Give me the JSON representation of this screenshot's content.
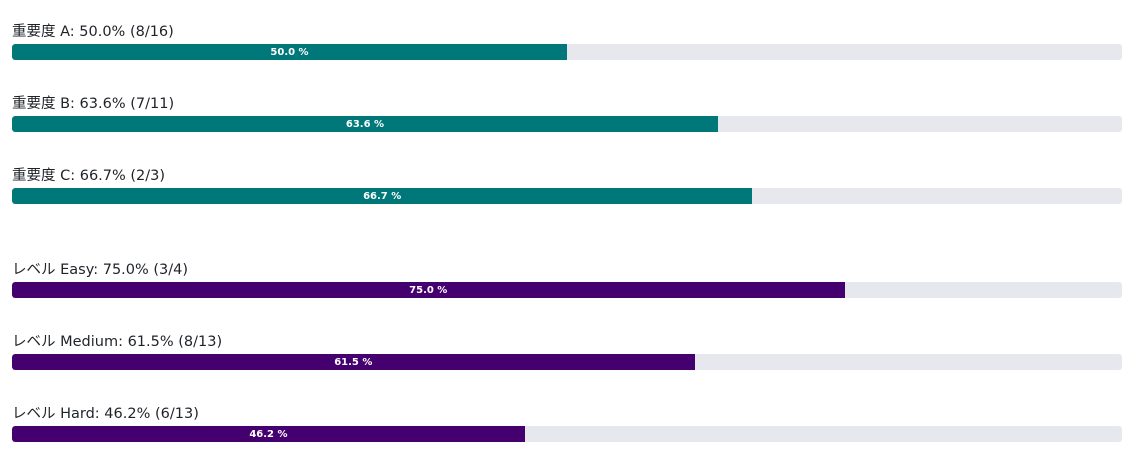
{
  "groups": [
    {
      "color": "#00787a",
      "items": [
        {
          "label": "重要度 A: 50.0% (8/16)",
          "percent": 50.0,
          "percent_label": "50.0 %"
        },
        {
          "label": "重要度 B: 63.6% (7/11)",
          "percent": 63.6,
          "percent_label": "63.6 %"
        },
        {
          "label": "重要度 C: 66.7% (2/3)",
          "percent": 66.7,
          "percent_label": "66.7 %"
        }
      ]
    },
    {
      "color": "#45006f",
      "items": [
        {
          "label": "レベル Easy: 75.0% (3/4)",
          "percent": 75.0,
          "percent_label": "75.0 %"
        },
        {
          "label": "レベル Medium: 61.5% (8/13)",
          "percent": 61.5,
          "percent_label": "61.5 %"
        },
        {
          "label": "レベル Hard: 46.2% (6/13)",
          "percent": 46.2,
          "percent_label": "46.2 %"
        }
      ]
    }
  ]
}
